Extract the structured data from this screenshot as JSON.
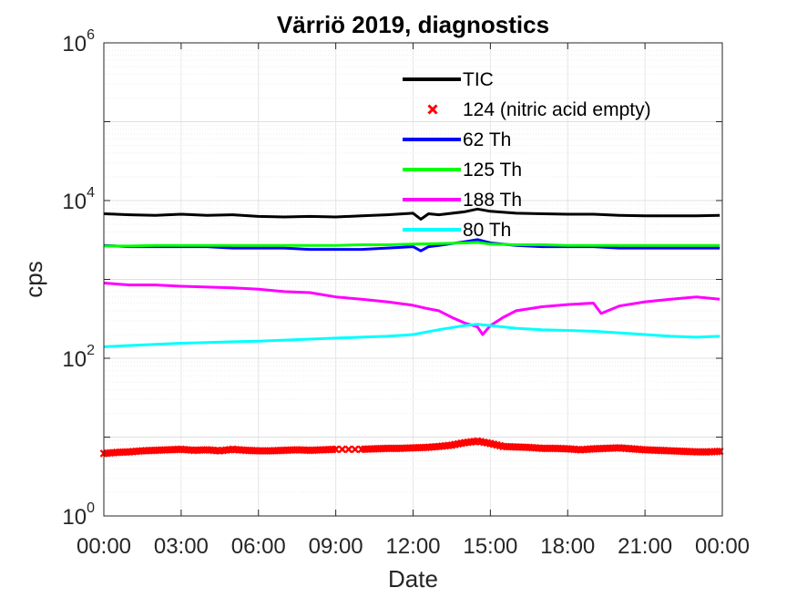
{
  "chart_data": {
    "type": "line",
    "title": "Värriö 2019, diagnostics",
    "xlabel": "Date",
    "ylabel": "cps",
    "yscale": "log",
    "ylim": [
      1,
      1000000
    ],
    "xlim": [
      0,
      24
    ],
    "x_tick_labels": [
      "00:00",
      "03:00",
      "06:00",
      "09:00",
      "12:00",
      "15:00",
      "18:00",
      "21:00",
      "00:00"
    ],
    "y_ticks": [
      {
        "base": "10",
        "exp": "0"
      },
      {
        "base": "10",
        "exp": "2"
      },
      {
        "base": "10",
        "exp": "4"
      },
      {
        "base": "10",
        "exp": "6"
      }
    ],
    "grid": true,
    "legend_position": "top-center",
    "series": [
      {
        "name": "TIC",
        "color": "#000000",
        "style": "line",
        "x": [
          0,
          1,
          2,
          3,
          4,
          5,
          6,
          7,
          8,
          9,
          10,
          11,
          12,
          12.3,
          12.6,
          13,
          14,
          14.5,
          15,
          16,
          17,
          18,
          19,
          20,
          21,
          22,
          23,
          23.9
        ],
        "y": [
          6800,
          6600,
          6500,
          6700,
          6500,
          6600,
          6300,
          6200,
          6300,
          6200,
          6400,
          6600,
          6900,
          5800,
          6800,
          6600,
          7200,
          7800,
          7300,
          6900,
          6800,
          6700,
          6700,
          6500,
          6400,
          6400,
          6400,
          6500
        ]
      },
      {
        "name": "124 (nitric acid empty)",
        "color": "#ff0000",
        "style": "marker",
        "x": [
          0,
          0.5,
          1,
          1.5,
          2,
          2.5,
          3,
          3.5,
          4,
          4.5,
          5,
          5.5,
          6,
          6.5,
          7,
          7.5,
          8,
          8.5,
          9,
          10,
          10.5,
          11,
          11.5,
          12,
          12.5,
          13,
          13.5,
          14,
          14.5,
          15,
          15.5,
          16,
          16.5,
          17,
          17.5,
          18,
          18.5,
          19,
          19.5,
          20,
          20.5,
          21,
          21.5,
          22,
          22.5,
          23,
          23.5,
          23.9
        ],
        "y": [
          6.2,
          6.4,
          6.5,
          6.7,
          6.8,
          6.9,
          7.0,
          6.8,
          6.9,
          6.7,
          7.0,
          6.8,
          6.7,
          6.7,
          6.8,
          6.9,
          6.8,
          6.9,
          7.0,
          7.0,
          7.1,
          7.2,
          7.2,
          7.3,
          7.4,
          7.6,
          7.9,
          8.5,
          8.9,
          8.3,
          7.6,
          7.5,
          7.4,
          7.2,
          7.2,
          7.1,
          6.9,
          7.1,
          7.2,
          7.3,
          7.1,
          6.9,
          6.8,
          6.7,
          6.6,
          6.5,
          6.5,
          6.6
        ]
      },
      {
        "name": "62 Th",
        "color": "#0000ff",
        "style": "line",
        "x": [
          0,
          1,
          2,
          3,
          4,
          5,
          6,
          7,
          8,
          9,
          10,
          11,
          12,
          12.3,
          12.6,
          13,
          14,
          14.5,
          15,
          16,
          17,
          18,
          19,
          20,
          21,
          22,
          23,
          23.9
        ],
        "y": [
          2700,
          2600,
          2600,
          2600,
          2600,
          2500,
          2500,
          2500,
          2400,
          2400,
          2400,
          2500,
          2600,
          2300,
          2600,
          2700,
          3000,
          3200,
          2900,
          2700,
          2600,
          2600,
          2600,
          2500,
          2500,
          2500,
          2500,
          2500
        ]
      },
      {
        "name": "125 Th",
        "color": "#00ff00",
        "style": "line",
        "x": [
          0,
          1,
          2,
          3,
          4,
          5,
          6,
          7,
          8,
          9,
          10,
          11,
          12,
          13,
          14,
          14.5,
          15,
          16,
          17,
          18,
          19,
          20,
          21,
          22,
          23,
          23.9
        ],
        "y": [
          2650,
          2650,
          2700,
          2700,
          2700,
          2700,
          2700,
          2700,
          2700,
          2700,
          2750,
          2750,
          2800,
          2850,
          2900,
          2950,
          2800,
          2750,
          2750,
          2700,
          2700,
          2700,
          2700,
          2700,
          2700,
          2700
        ]
      },
      {
        "name": "188 Th",
        "color": "#ff00ff",
        "style": "line",
        "x": [
          0,
          1,
          2,
          3,
          4,
          5,
          6,
          7,
          8,
          9,
          10,
          11,
          12,
          12.5,
          13,
          13.5,
          14,
          14.5,
          14.7,
          15,
          15.5,
          16,
          17,
          18,
          19,
          19.3,
          20,
          21,
          22,
          23,
          23.9
        ],
        "y": [
          900,
          850,
          850,
          820,
          800,
          780,
          750,
          700,
          680,
          600,
          560,
          520,
          470,
          430,
          400,
          330,
          280,
          250,
          200,
          260,
          330,
          400,
          450,
          480,
          500,
          370,
          460,
          520,
          560,
          600,
          560
        ]
      },
      {
        "name": "80 Th",
        "color": "#00ffff",
        "style": "line",
        "x": [
          0,
          1,
          2,
          3,
          4,
          5,
          6,
          7,
          8,
          9,
          10,
          11,
          12,
          13,
          14,
          14.5,
          15,
          16,
          17,
          18,
          19,
          20,
          21,
          22,
          23,
          23.9
        ],
        "y": [
          140,
          145,
          150,
          155,
          158,
          162,
          165,
          170,
          175,
          180,
          185,
          190,
          200,
          230,
          260,
          270,
          260,
          240,
          230,
          225,
          220,
          210,
          200,
          190,
          185,
          190
        ]
      }
    ]
  }
}
